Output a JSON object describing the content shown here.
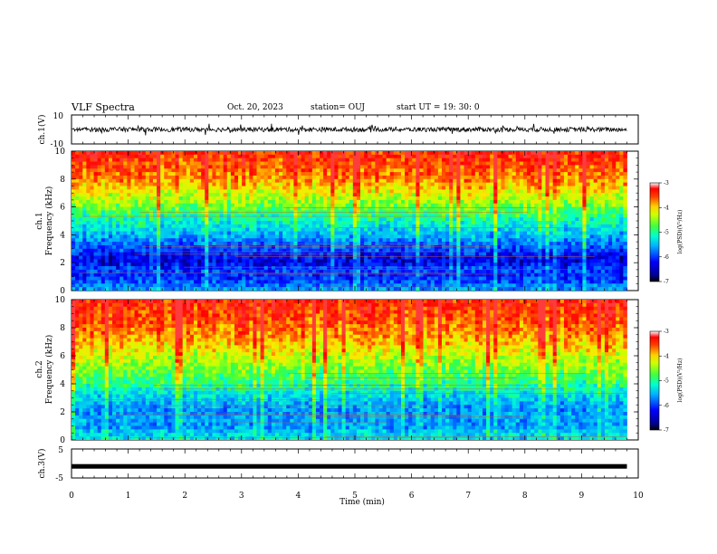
{
  "header": {
    "title": "VLF Spectra",
    "date": "Oct. 20, 2023",
    "station": "station= OUJ",
    "start": "start  UT  =   19: 30: 0"
  },
  "chart_data": [
    {
      "type": "line",
      "panel": "ch1-waveform",
      "ylabel": "ch.1(V)",
      "ylim": [
        -10,
        10
      ],
      "yticks": [
        "10",
        "-10"
      ],
      "description_series": "broadband waveform, mean ≈ 0 V, amplitude ≈ ±2 V with spikes to ≈ ±4 V",
      "xlim": [
        0,
        10
      ]
    },
    {
      "type": "heatmap",
      "panel": "ch1-spectrogram",
      "ylabel": "ch.1\nFrequency (kHz)",
      "ylabel_top": "ch.1",
      "ylabel_bottom": "Frequency (kHz)",
      "ylim": [
        0,
        10
      ],
      "yticks": [
        "0",
        "2",
        "4",
        "6",
        "8",
        "10"
      ],
      "xlim": [
        0,
        9.8
      ],
      "colorbar": {
        "label": "log(PSD)(V²/Hz)",
        "range": [
          -7,
          -3
        ],
        "ticks": [
          "-3",
          "-4",
          "-5",
          "-6",
          "-7"
        ],
        "colormap": [
          "#000080",
          "#0000ff",
          "#00a0ff",
          "#00ffff",
          "#00ff80",
          "#80ff00",
          "#ffff00",
          "#ff8000",
          "#ff0000"
        ]
      },
      "profile_khz": [
        0,
        0.5,
        1,
        1.5,
        2,
        2.5,
        3,
        3.5,
        4,
        5,
        6,
        7,
        8,
        10
      ],
      "profile_log_psd": [
        -5.8,
        -6.1,
        -6.4,
        -6.2,
        -6.6,
        -6.5,
        -6.2,
        -6.0,
        -5.7,
        -5.3,
        -4.8,
        -4.3,
        -3.8,
        -3.3
      ]
    },
    {
      "type": "heatmap",
      "panel": "ch2-spectrogram",
      "ylabel_top": "ch.2",
      "ylabel_bottom": "Frequency (kHz)",
      "ylim": [
        0,
        10
      ],
      "yticks": [
        "0",
        "2",
        "4",
        "6",
        "8",
        "10"
      ],
      "xlim": [
        0,
        9.8
      ],
      "colorbar": {
        "label": "log(PSD)(V²/Hz)",
        "range": [
          -7,
          -3
        ],
        "ticks": [
          "-3",
          "-4",
          "-5",
          "-6",
          "-7"
        ]
      },
      "profile_khz": [
        0,
        0.5,
        1,
        1.5,
        2,
        2.5,
        3,
        3.5,
        4,
        5,
        6,
        7,
        8,
        10
      ],
      "profile_log_psd": [
        -5.5,
        -5.6,
        -5.9,
        -5.8,
        -5.9,
        -5.8,
        -5.6,
        -5.4,
        -5.1,
        -4.8,
        -4.4,
        -4.0,
        -3.7,
        -3.3
      ]
    },
    {
      "type": "line",
      "panel": "ch3-waveform",
      "ylabel": "ch.3(V)",
      "ylim": [
        -5,
        5
      ],
      "yticks": [
        "5",
        "-5"
      ],
      "value_constant": -1,
      "xlim": [
        0,
        9.8
      ]
    }
  ],
  "xaxis": {
    "label": "Time (min)",
    "ticks": [
      "0",
      "1",
      "2",
      "3",
      "4",
      "5",
      "6",
      "7",
      "8",
      "9",
      "10"
    ],
    "range": [
      0,
      10
    ]
  }
}
